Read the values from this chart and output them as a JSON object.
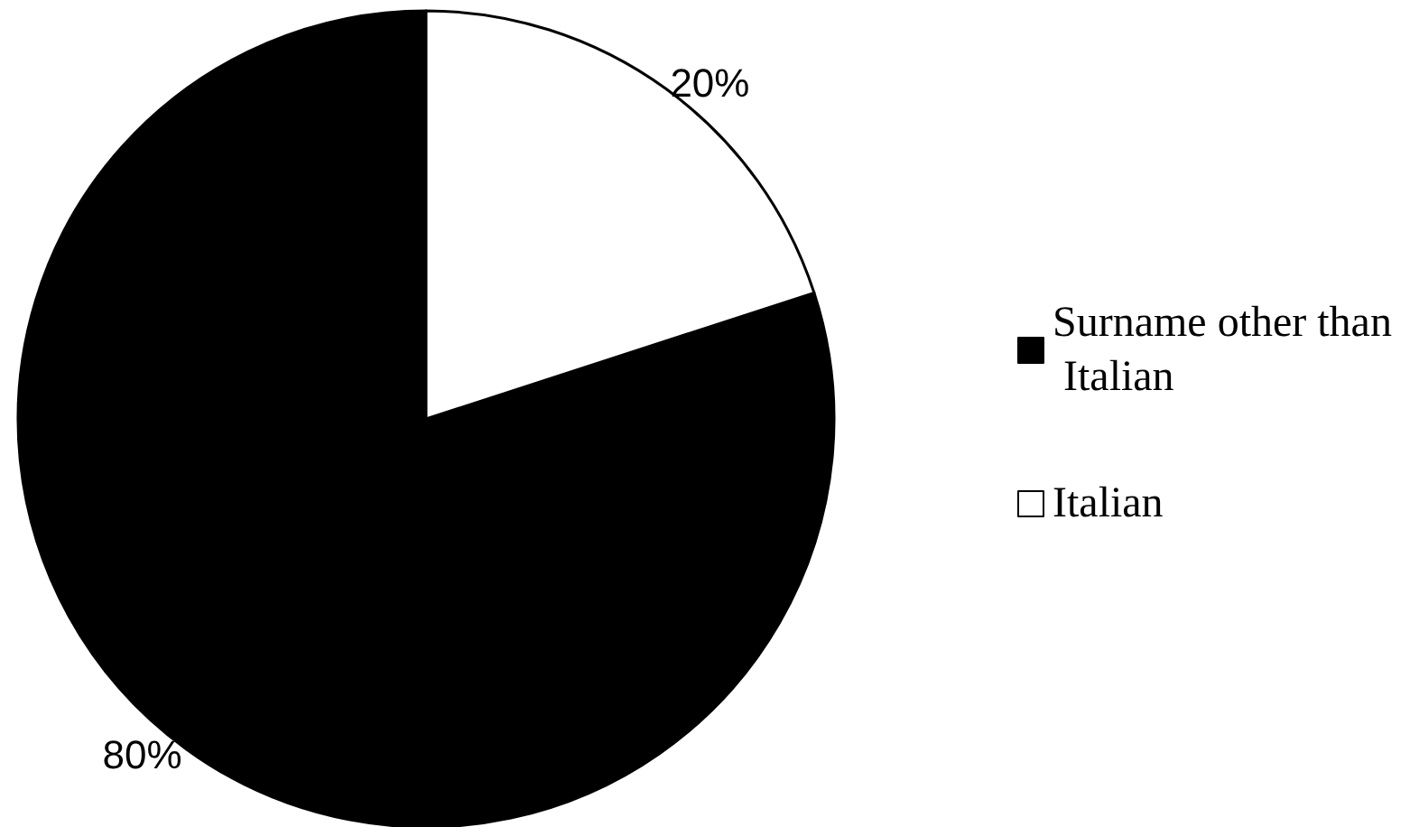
{
  "chart_data": {
    "type": "pie",
    "categories": [
      "Surname other than Italian",
      "Italian"
    ],
    "values": [
      80,
      20
    ],
    "colors": [
      "#000000",
      "#ffffff"
    ],
    "value_labels": [
      "80%",
      "20%"
    ],
    "legend": "right"
  }
}
